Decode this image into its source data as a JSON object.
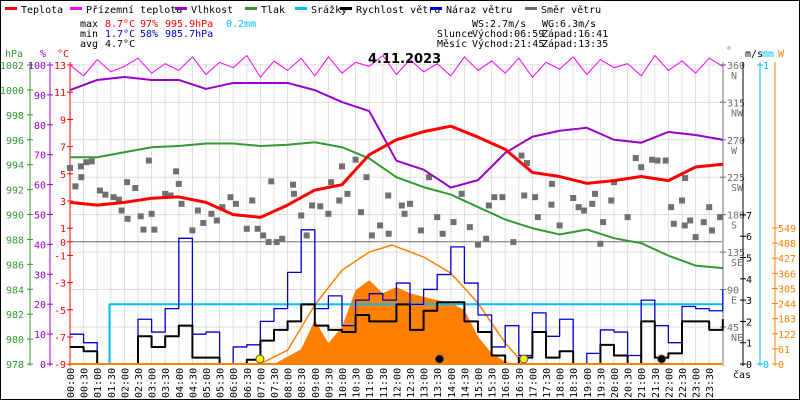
{
  "legend": [
    {
      "label": "Teplota",
      "color": "#ff0000"
    },
    {
      "label": "Přízemní teplota",
      "color": "#ff00ff"
    },
    {
      "label": "Vlhkost",
      "color": "#9900cc"
    },
    {
      "label": "Tlak",
      "color": "#339933"
    },
    {
      "label": "Srážky",
      "color": "#00bfff"
    },
    {
      "label": "Rychlost větru",
      "color": "#000000"
    },
    {
      "label": "Náraz větru",
      "color": "#0000cc"
    },
    {
      "label": "Směr větru",
      "color": "#707070"
    }
  ],
  "stats": {
    "max": {
      "label": "max",
      "temp": "8.7°C",
      "hum": "97%",
      "press": "995.9hPa",
      "rain": "0.2mm"
    },
    "min": {
      "label": "min",
      "temp": "1.7°C",
      "hum": "58%",
      "press": "985.7hPa"
    },
    "avg": {
      "label": "avg",
      "temp": "4.7°C"
    }
  },
  "wind_summary": {
    "ws": "WS:2.7m/s",
    "wg": "WG:6.3m/s"
  },
  "sun": {
    "label": "Slunce",
    "rise": "Východ:06:59",
    "set": "Západ:16:41"
  },
  "moon": {
    "label": "Měsíc",
    "rise": "Východ:21:45",
    "set": "Západ:13:35"
  },
  "colors": {
    "max": "#ff0000",
    "min": "#0000cc",
    "rain": "#00bfff",
    "solar": "#ff8000",
    "grid": "#dddddd",
    "zero_line": "#707070",
    "sun_marker": "#ffee00",
    "moon_marker": "#000000"
  },
  "chart_data": {
    "type": "line",
    "title": "4.11.2023",
    "xlabel": "čas",
    "grid": true,
    "legend_placement": "top",
    "x_ticks": [
      "00:00",
      "00:30",
      "01:00",
      "01:30",
      "02:00",
      "02:30",
      "03:00",
      "03:30",
      "04:00",
      "04:30",
      "05:00",
      "05:30",
      "06:00",
      "06:30",
      "07:00",
      "07:30",
      "08:00",
      "08:30",
      "09:00",
      "09:30",
      "10:00",
      "10:30",
      "11:00",
      "11:30",
      "12:00",
      "12:30",
      "13:00",
      "13:30",
      "14:00",
      "14:30",
      "15:00",
      "15:30",
      "16:00",
      "16:30",
      "17:00",
      "17:30",
      "18:00",
      "18:30",
      "19:00",
      "19:30",
      "20:00",
      "20:30",
      "21:00",
      "21:30",
      "22:00",
      "22:30",
      "23:00",
      "23:30"
    ],
    "axes": {
      "pressure": {
        "unit": "hPa",
        "range": [
          978,
          1002
        ],
        "ticks": [
          1002,
          1000,
          998,
          996,
          994,
          992,
          990,
          988,
          986,
          984,
          982,
          980,
          978
        ],
        "color": "#339933"
      },
      "humidity": {
        "unit": "%",
        "range": [
          0,
          100
        ],
        "ticks": [
          100,
          90,
          80,
          70,
          60,
          50,
          40,
          30,
          20,
          10,
          0
        ],
        "color": "#9900cc"
      },
      "temperature": {
        "unit": "°C",
        "range": [
          -9,
          13
        ],
        "ticks": [
          13,
          11,
          9,
          7,
          5,
          3,
          1,
          0,
          -1,
          -3,
          -5,
          -7,
          -9
        ],
        "color": "#ff0000"
      },
      "direction": {
        "unit": "°",
        "range": [
          0,
          360
        ],
        "ticks": [
          {
            "v": 360,
            "l": "N"
          },
          {
            "v": 315,
            "l": "NW"
          },
          {
            "v": 270,
            "l": "W"
          },
          {
            "v": 225,
            "l": "SW"
          },
          {
            "v": 180,
            "l": "S"
          },
          {
            "v": 135,
            "l": "SE"
          },
          {
            "v": 90,
            "l": "E"
          },
          {
            "v": 45,
            "l": "NE"
          }
        ],
        "color": "#707070"
      },
      "wind": {
        "unit": "m/s",
        "range": [
          0,
          7
        ],
        "ticks": [
          7,
          6,
          5,
          4,
          3,
          2,
          1,
          0
        ],
        "color": "#000000"
      },
      "rain": {
        "unit": "mm",
        "range": [
          0,
          1
        ],
        "ticks": [
          1,
          0
        ],
        "color": "#00bfff"
      },
      "solar": {
        "unit": "W",
        "range": [
          0,
          549
        ],
        "ticks": [
          549,
          488,
          427,
          366,
          305,
          244,
          183,
          122,
          61,
          0
        ],
        "color": "#ff8000"
      }
    },
    "hourly_x": [
      "00:00",
      "01:00",
      "02:00",
      "03:00",
      "04:00",
      "05:00",
      "06:00",
      "07:00",
      "08:00",
      "09:00",
      "10:00",
      "11:00",
      "12:00",
      "13:00",
      "14:00",
      "15:00",
      "16:00",
      "17:00",
      "18:00",
      "19:00",
      "20:00",
      "21:00",
      "22:00",
      "23:00",
      "24:00"
    ],
    "halfhourly_x": [
      "00:00",
      "00:30",
      "01:00",
      "01:30",
      "02:00",
      "02:30",
      "03:00",
      "03:30",
      "04:00",
      "04:30",
      "05:00",
      "05:30",
      "06:00",
      "06:30",
      "07:00",
      "07:30",
      "08:00",
      "08:30",
      "09:00",
      "09:30",
      "10:00",
      "10:30",
      "11:00",
      "11:30",
      "12:00",
      "12:30",
      "13:00",
      "13:30",
      "14:00",
      "14:30",
      "15:00",
      "15:30",
      "16:00",
      "16:30",
      "17:00",
      "17:30",
      "18:00",
      "18:30",
      "19:00",
      "19:30",
      "20:00",
      "20:30",
      "21:00",
      "21:30",
      "22:00",
      "22:30",
      "23:00",
      "23:30",
      "24:00"
    ],
    "series": [
      {
        "name": "Teplota",
        "axis": "temperature",
        "x_ref": "hourly_x",
        "values": [
          2.9,
          2.7,
          2.9,
          3.2,
          3.3,
          2.9,
          2.0,
          1.8,
          2.7,
          3.8,
          4.2,
          6.4,
          7.5,
          8.1,
          8.5,
          7.7,
          6.8,
          5.1,
          4.8,
          4.3,
          4.5,
          4.8,
          4.5,
          5.5,
          5.7
        ]
      },
      {
        "name": "Přízemní teplota",
        "axis": "temperature",
        "x_ref": "halfhourly_x",
        "values": [
          13.0,
          12.2,
          13.4,
          12.5,
          12.9,
          13.5,
          12.4,
          13.1,
          12.6,
          13.6,
          12.3,
          13.2,
          12.8,
          13.7,
          12.1,
          13.3,
          12.6,
          13.5,
          12.2,
          13.6,
          12.4,
          13.2,
          12.9,
          13.7,
          12.3,
          13.4,
          12.5,
          13.1,
          12.2,
          13.6,
          12.6,
          13.3,
          12.4,
          13.5,
          12.1,
          13.2,
          12.7,
          13.6,
          12.3,
          13.4,
          12.8,
          13.1,
          12.2,
          13.7,
          12.6,
          13.3,
          12.4,
          13.5,
          12.9
        ]
      },
      {
        "name": "Vlhkost",
        "axis": "humidity",
        "x_ref": "hourly_x",
        "values": [
          91.6,
          95,
          96,
          95,
          95,
          92,
          94,
          94,
          94,
          91.6,
          87.6,
          84.6,
          68,
          65,
          59,
          61.5,
          70.6,
          76,
          78,
          79,
          75,
          74,
          77.6,
          76.6,
          75
        ]
      },
      {
        "name": "Tlak",
        "axis": "pressure",
        "x_ref": "hourly_x",
        "values": [
          994.6,
          994.6,
          995.0,
          995.4,
          995.5,
          995.7,
          995.7,
          995.5,
          995.6,
          995.8,
          995.4,
          994.5,
          993.0,
          992.2,
          991.6,
          990.6,
          989.6,
          988.9,
          988.4,
          988.8,
          988.1,
          987.7,
          986.7,
          985.9,
          985.7
        ]
      },
      {
        "name": "Srážky",
        "axis": "rain",
        "x": [
          "00:00",
          "01:25",
          "01:27",
          "24:00"
        ],
        "values": [
          0,
          0,
          0.2,
          0.2
        ]
      },
      {
        "name": "Rychlost větru",
        "axis": "wind",
        "x_ref": "halfhourly_x",
        "values": [
          0.8,
          0.6,
          0,
          0,
          0,
          1.3,
          0.8,
          1.3,
          1.8,
          0.3,
          0.3,
          0,
          0,
          0.2,
          1.1,
          1.6,
          2.0,
          2.8,
          1.8,
          1.6,
          1.5,
          2.3,
          2.0,
          2.0,
          2.8,
          1.6,
          2.5,
          2.9,
          2.9,
          2.0,
          1.5,
          0.4,
          0,
          0.3,
          1.5,
          0.3,
          0.6,
          0,
          0,
          0.9,
          0.4,
          0,
          2.0,
          0.3,
          0.5,
          2.0,
          2.0,
          1.6,
          2.1
        ]
      },
      {
        "name": "Náraz větru",
        "axis": "wind",
        "x_ref": "halfhourly_x",
        "values": [
          1.4,
          1.0,
          0,
          0,
          0,
          2.1,
          1.5,
          2.6,
          5.9,
          1.4,
          1.5,
          0,
          0.8,
          0.9,
          2.0,
          2.6,
          4.3,
          6.3,
          2.6,
          3.2,
          1.8,
          3.0,
          3.3,
          3.0,
          3.8,
          2.8,
          3.5,
          4.2,
          5.5,
          3.8,
          2.3,
          0.8,
          1.8,
          0.4,
          2.4,
          1.3,
          2.1,
          0,
          0.5,
          1.6,
          1.5,
          0.4,
          3.0,
          1.8,
          1.0,
          2.7,
          2.6,
          2.5,
          3.5
        ]
      },
      {
        "name": "Směr větru",
        "axis": "direction",
        "type": "scatter",
        "points": [
          [
            "00:00",
            236
          ],
          [
            "00:12",
            214
          ],
          [
            "00:24",
            238
          ],
          [
            "00:25",
            225
          ],
          [
            "00:36",
            243
          ],
          [
            "00:48",
            244
          ],
          [
            "01:06",
            209
          ],
          [
            "01:18",
            204
          ],
          [
            "01:36",
            201
          ],
          [
            "01:48",
            198
          ],
          [
            "01:54",
            185
          ],
          [
            "02:06",
            219
          ],
          [
            "02:07",
            175
          ],
          [
            "02:24",
            212
          ],
          [
            "02:36",
            178
          ],
          [
            "02:42",
            162
          ],
          [
            "02:54",
            245
          ],
          [
            "03:00",
            181
          ],
          [
            "03:06",
            162
          ],
          [
            "03:30",
            205
          ],
          [
            "03:42",
            203
          ],
          [
            "03:54",
            232
          ],
          [
            "04:00",
            217
          ],
          [
            "04:06",
            193
          ],
          [
            "04:30",
            161
          ],
          [
            "04:42",
            185
          ],
          [
            "04:54",
            170
          ],
          [
            "05:12",
            181
          ],
          [
            "05:24",
            173
          ],
          [
            "05:36",
            189
          ],
          [
            "05:54",
            201
          ],
          [
            "06:06",
            193
          ],
          [
            "06:30",
            163
          ],
          [
            "06:42",
            197
          ],
          [
            "06:54",
            163
          ],
          [
            "07:06",
            155
          ],
          [
            "07:18",
            147
          ],
          [
            "07:24",
            220
          ],
          [
            "07:36",
            147
          ],
          [
            "07:48",
            151
          ],
          [
            "08:12",
            216
          ],
          [
            "08:14",
            205
          ],
          [
            "08:30",
            179
          ],
          [
            "08:42",
            155
          ],
          [
            "08:54",
            191
          ],
          [
            "09:12",
            190
          ],
          [
            "09:30",
            181
          ],
          [
            "09:36",
            219
          ],
          [
            "09:54",
            197
          ],
          [
            "10:00",
            238
          ],
          [
            "10:12",
            205
          ],
          [
            "10:30",
            246
          ],
          [
            "10:42",
            183
          ],
          [
            "10:54",
            225
          ],
          [
            "11:06",
            155
          ],
          [
            "11:24",
            167
          ],
          [
            "11:42",
            203
          ],
          [
            "11:43",
            157
          ],
          [
            "12:12",
            191
          ],
          [
            "12:18",
            181
          ],
          [
            "12:30",
            193
          ],
          [
            "12:54",
            161
          ],
          [
            "13:12",
            225
          ],
          [
            "13:30",
            177
          ],
          [
            "13:42",
            157
          ],
          [
            "14:06",
            171
          ],
          [
            "14:24",
            205
          ],
          [
            "14:42",
            165
          ],
          [
            "15:00",
            144
          ],
          [
            "15:18",
            151
          ],
          [
            "15:24",
            191
          ],
          [
            "15:36",
            201
          ],
          [
            "15:54",
            201
          ],
          [
            "16:18",
            147
          ],
          [
            "16:36",
            251
          ],
          [
            "16:42",
            203
          ],
          [
            "16:48",
            242
          ],
          [
            "17:06",
            201
          ],
          [
            "17:12",
            177
          ],
          [
            "17:42",
            192
          ],
          [
            "17:43",
            217
          ],
          [
            "18:00",
            167
          ],
          [
            "18:30",
            200
          ],
          [
            "18:42",
            189
          ],
          [
            "18:54",
            185
          ],
          [
            "19:12",
            193
          ],
          [
            "19:18",
            205
          ],
          [
            "19:30",
            145
          ],
          [
            "19:36",
            171
          ],
          [
            "19:54",
            197
          ],
          [
            "20:00",
            219
          ],
          [
            "20:30",
            177
          ],
          [
            "20:48",
            248
          ],
          [
            "21:00",
            237
          ],
          [
            "21:24",
            246
          ],
          [
            "21:36",
            245
          ],
          [
            "21:54",
            245
          ],
          [
            "22:06",
            189
          ],
          [
            "22:12",
            169
          ],
          [
            "22:30",
            197
          ],
          [
            "22:36",
            167
          ],
          [
            "22:37",
            224
          ],
          [
            "22:48",
            173
          ],
          [
            "23:00",
            153
          ],
          [
            "23:18",
            171
          ],
          [
            "23:30",
            189
          ],
          [
            "23:36",
            161
          ],
          [
            "23:54",
            177
          ]
        ]
      },
      {
        "axis": "solar",
        "type": "area",
        "x": [
          "07:30",
          "08:00",
          "08:30",
          "09:00",
          "09:30",
          "10:00",
          "10:30",
          "11:00",
          "11:30",
          "12:00",
          "12:30",
          "13:00",
          "13:30",
          "14:00",
          "14:30",
          "15:00",
          "15:30",
          "16:00",
          "16:20"
        ],
        "values": [
          0,
          30,
          60,
          177,
          84,
          150,
          298,
          338,
          286,
          311,
          286,
          271,
          258,
          246,
          218,
          110,
          44,
          9,
          0
        ]
      },
      {
        "axis": "solar",
        "type": "curve",
        "x": [
          "06:59",
          "08:00",
          "09:00",
          "10:00",
          "11:00",
          "11:50",
          "13:00",
          "14:00",
          "15:00",
          "16:00",
          "16:41"
        ],
        "values": [
          0,
          56,
          238,
          379,
          452,
          480,
          432,
          367,
          246,
          85,
          0
        ]
      }
    ],
    "markers": [
      {
        "kind": "sunrise",
        "time": "06:59"
      },
      {
        "kind": "sunset",
        "time": "16:41"
      },
      {
        "kind": "moonset",
        "time": "13:35"
      },
      {
        "kind": "moonrise",
        "time": "21:45"
      }
    ]
  }
}
